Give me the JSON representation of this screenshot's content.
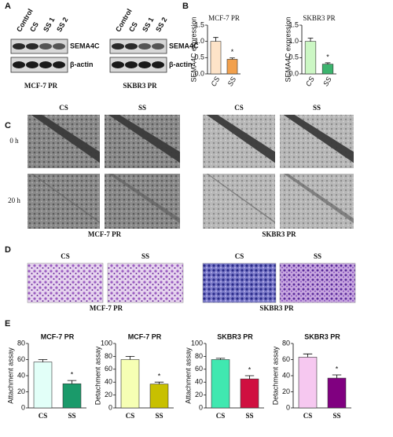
{
  "chart_data": [
    {
      "type": "bar",
      "title": "MCF-7 PR",
      "ylabel": "SEMA4C expression",
      "categories": [
        "CS",
        "SS"
      ],
      "values": [
        1.0,
        0.45
      ],
      "errors": [
        0.12,
        0.04
      ],
      "colors": [
        "#fde3c8",
        "#f2a04c"
      ],
      "ylim": [
        0,
        1.5
      ],
      "yticks": [
        {
          "value": 0,
          "label": "0.0"
        },
        0.5,
        {
          "value": 1,
          "label": "1.0"
        },
        1.5
      ],
      "annotation": "*"
    },
    {
      "type": "bar",
      "title": "SKBR3 PR",
      "ylabel": "SEMA4C expression",
      "categories": [
        "CS",
        "SS"
      ],
      "values": [
        1.0,
        0.3
      ],
      "errors": [
        0.1,
        0.04
      ],
      "colors": [
        "#ccf7c4",
        "#3cb46e"
      ],
      "ylim": [
        0,
        1.5
      ],
      "yticks": [
        {
          "value": 0,
          "label": "0.0"
        },
        0.5,
        {
          "value": 1,
          "label": "1.0"
        },
        1.5
      ],
      "annotation": "*"
    },
    {
      "type": "bar",
      "title": "MCF-7 PR",
      "ylabel": "Attachment assay",
      "categories": [
        "CS",
        "SS"
      ],
      "values": [
        57,
        30
      ],
      "errors": [
        3,
        4
      ],
      "colors": [
        "#e2fff8",
        "#1a9a6a"
      ],
      "ylim": [
        0,
        80
      ],
      "yticks": [
        0,
        20,
        40,
        60,
        80
      ],
      "annotation": "*"
    },
    {
      "type": "bar",
      "title": "MCF-7 PR",
      "ylabel": "Detachment assay",
      "categories": [
        "CS",
        "SS"
      ],
      "values": [
        75,
        37
      ],
      "errors": [
        5,
        3
      ],
      "colors": [
        "#f6ffb4",
        "#c8c000"
      ],
      "ylim": [
        0,
        100
      ],
      "yticks": [
        0,
        20,
        40,
        60,
        80,
        100
      ],
      "annotation": "*"
    },
    {
      "type": "bar",
      "title": "SKBR3 PR",
      "ylabel": "Attachment assay",
      "categories": [
        "CS",
        "SS"
      ],
      "values": [
        75,
        45
      ],
      "errors": [
        2,
        5
      ],
      "colors": [
        "#40e8b0",
        "#d01040"
      ],
      "ylim": [
        0,
        100
      ],
      "yticks": [
        0,
        20,
        40,
        60,
        80,
        100
      ],
      "annotation": "*"
    },
    {
      "type": "bar",
      "title": "SKBR3 PR",
      "ylabel": "Detachment assay",
      "categories": [
        "CS",
        "SS"
      ],
      "values": [
        63,
        37
      ],
      "errors": [
        4,
        4
      ],
      "colors": [
        "#f6c8f0",
        "#800080"
      ],
      "ylim": [
        0,
        80
      ],
      "yticks": [
        0,
        20,
        40,
        60,
        80
      ],
      "annotation": "*"
    }
  ],
  "figure": {
    "panel_labels": [
      "A",
      "B",
      "C",
      "D",
      "E"
    ],
    "blots": [
      {
        "lanes": [
          "Control",
          "CS",
          "SS 1",
          "SS 2"
        ],
        "bands": [
          "SEMA4C",
          "β-actin"
        ],
        "cell_line": "MCF-7 PR"
      },
      {
        "lanes": [
          "Control",
          "CS",
          "SS 1",
          "SS 2"
        ],
        "bands": [
          "SEMA4C",
          "β-actin"
        ],
        "cell_line": "SKBR3 PR"
      }
    ],
    "wound": {
      "columns": [
        "CS",
        "SS",
        "CS",
        "SS"
      ],
      "rows": [
        "0 h",
        "20 h"
      ],
      "cell_lines": [
        "MCF-7 PR",
        "SKBR3 PR"
      ]
    },
    "invasion": {
      "columns": [
        "CS",
        "SS",
        "CS",
        "SS"
      ],
      "cell_lines": [
        "MCF-7 PR",
        "SKBR3 PR"
      ]
    }
  }
}
